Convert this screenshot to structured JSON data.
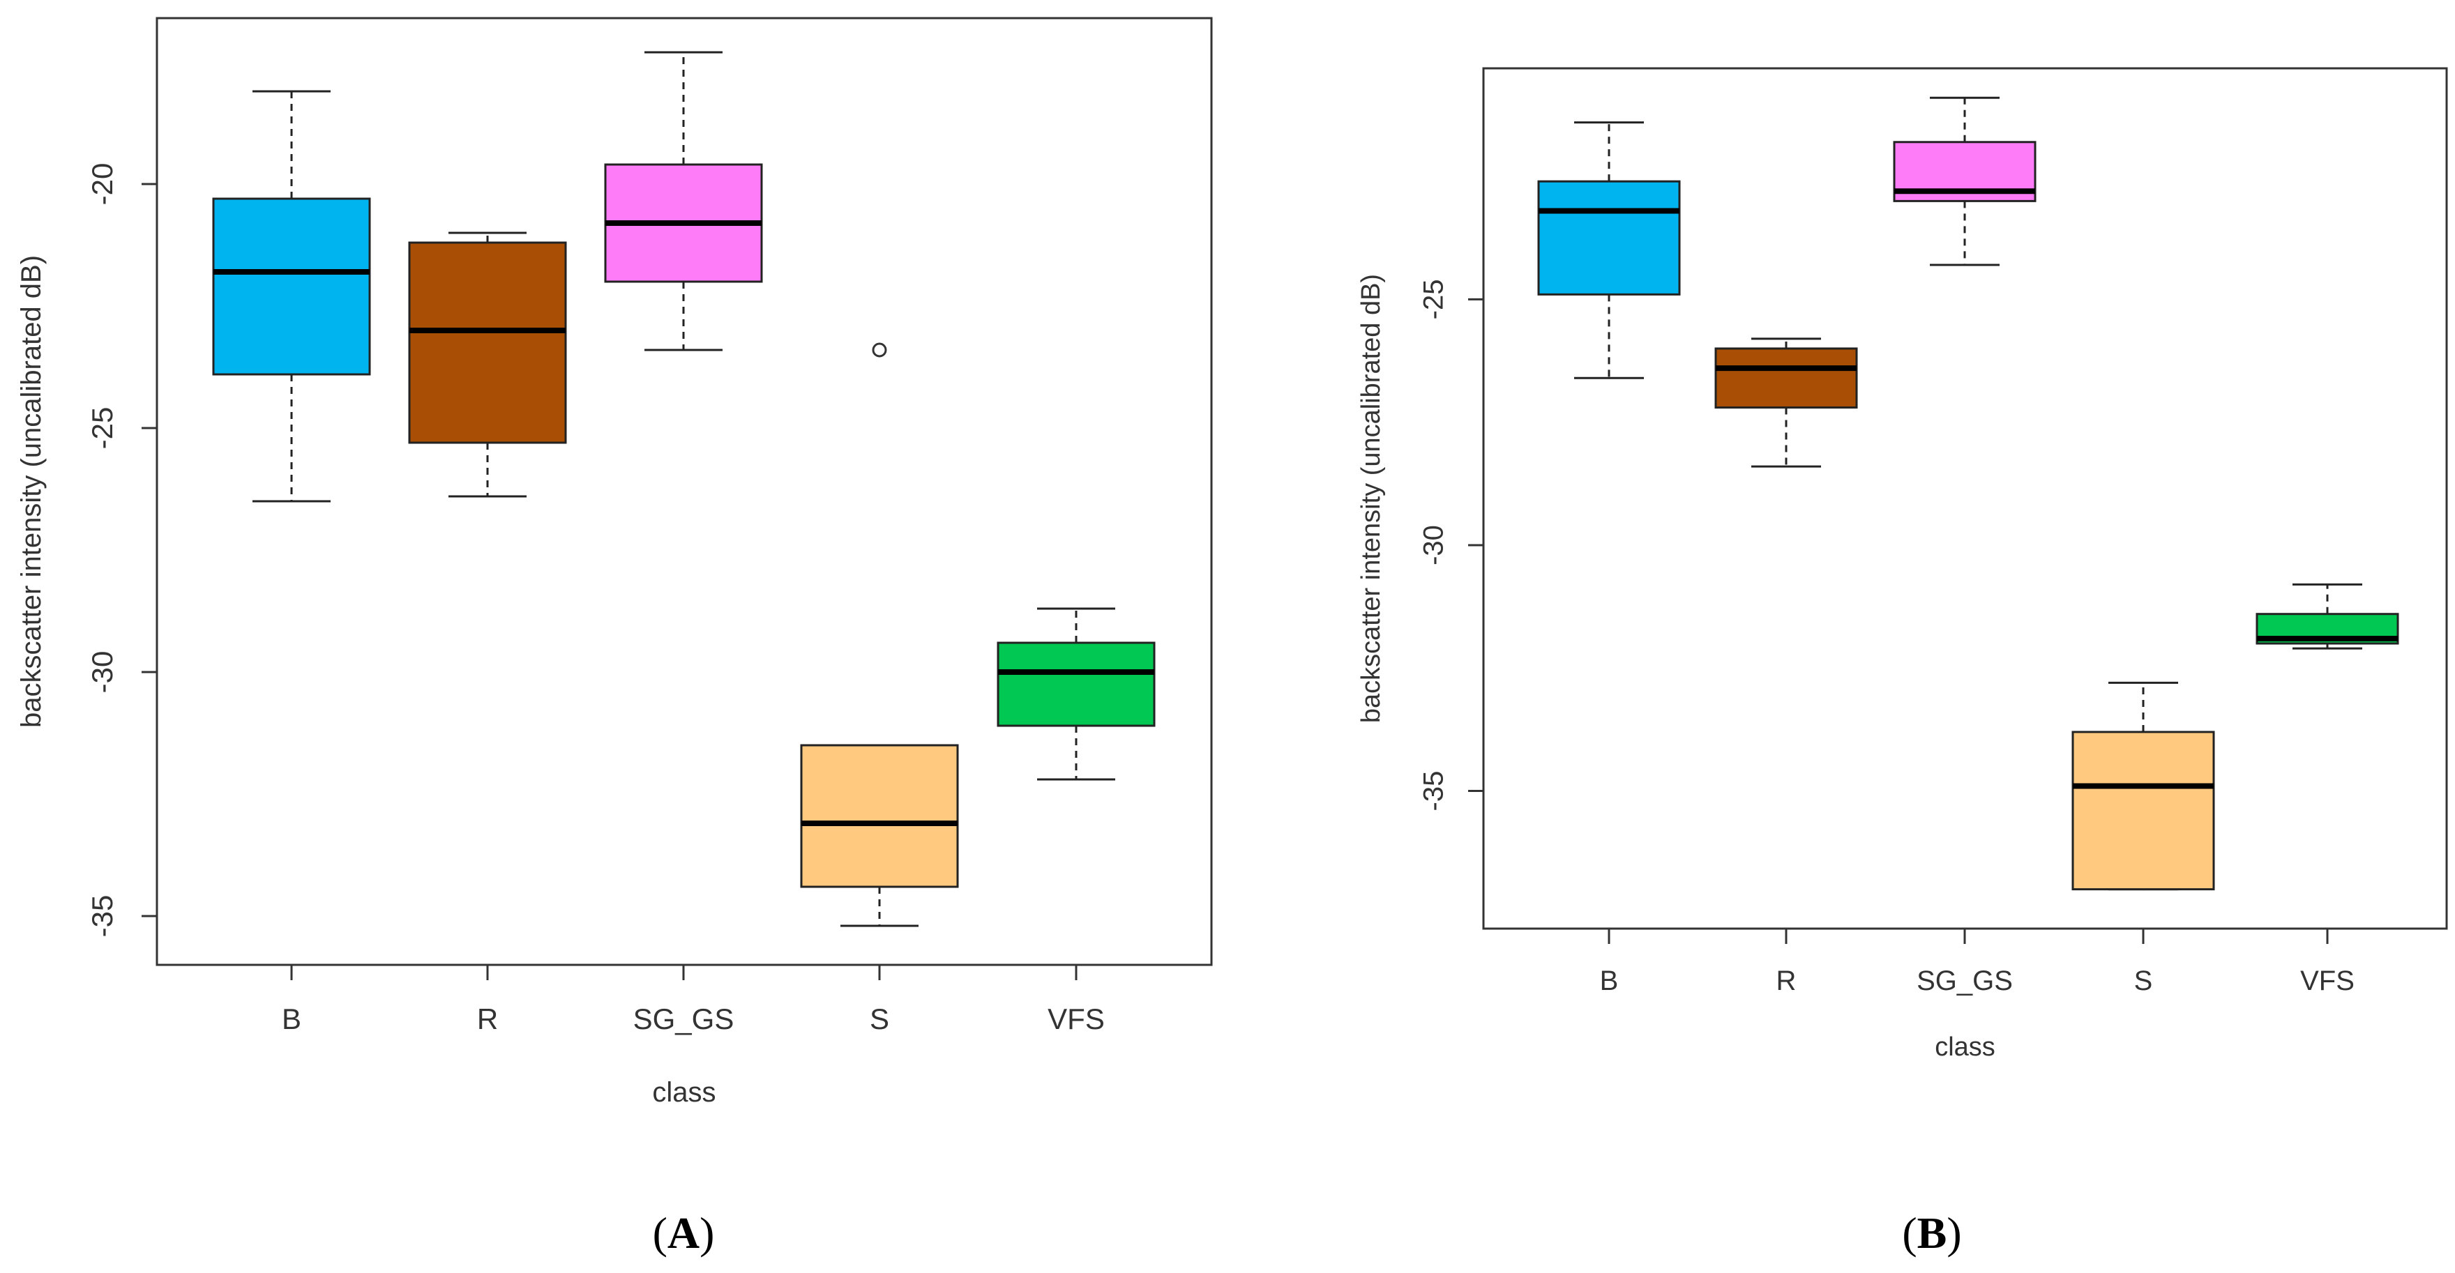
{
  "chart_data": [
    {
      "type": "boxplot",
      "panel_label": "A",
      "panel_label_open": "(",
      "panel_label_close": ")",
      "xlabel": "class",
      "ylabel": "backscatter intensity (uncalibrated dB)",
      "categories": [
        "B",
        "R",
        "SG_GS",
        "S",
        "VFS"
      ],
      "colors": [
        "#00b4f0",
        "#a84f05",
        "#ff7cf8",
        "#ffc97f",
        "#00c853"
      ],
      "yticks": [
        -20,
        -25,
        -30,
        -35
      ],
      "ylim": [
        -36,
        -16.6
      ],
      "boxes": [
        {
          "whisker_low": -26.5,
          "q1": -23.9,
          "median": -21.8,
          "q3": -20.3,
          "whisker_high": -18.1,
          "outliers": []
        },
        {
          "whisker_low": -26.4,
          "q1": -25.3,
          "median": -23.0,
          "q3": -21.2,
          "whisker_high": -21.0,
          "outliers": []
        },
        {
          "whisker_low": -23.4,
          "q1": -22.0,
          "median": -20.8,
          "q3": -19.6,
          "whisker_high": -17.3,
          "outliers": []
        },
        {
          "whisker_low": -35.2,
          "q1": -34.4,
          "median": -33.1,
          "q3": -31.5,
          "whisker_high": -31.5,
          "outliers": [
            -23.4
          ]
        },
        {
          "whisker_low": -32.2,
          "q1": -31.1,
          "median": -30.0,
          "q3": -29.4,
          "whisker_high": -28.7,
          "outliers": []
        }
      ]
    },
    {
      "type": "boxplot",
      "panel_label": "B",
      "panel_label_open": "(",
      "panel_label_close": ")",
      "xlabel": "class",
      "ylabel": "backscatter intensity (uncalibrated dB)",
      "categories": [
        "B",
        "R",
        "SG_GS",
        "S",
        "VFS"
      ],
      "colors": [
        "#00b4f0",
        "#a84f05",
        "#ff7cf8",
        "#ffc97f",
        "#00c853"
      ],
      "yticks": [
        -25,
        -30,
        -35
      ],
      "ylim": [
        -37.8,
        -20.3
      ],
      "boxes": [
        {
          "whisker_low": -26.6,
          "q1": -24.9,
          "median": -23.2,
          "q3": -22.6,
          "whisker_high": -21.4,
          "outliers": []
        },
        {
          "whisker_low": -28.4,
          "q1": -27.2,
          "median": -26.4,
          "q3": -26.0,
          "whisker_high": -25.8,
          "outliers": []
        },
        {
          "whisker_low": -24.3,
          "q1": -23.0,
          "median": -22.8,
          "q3": -21.8,
          "whisker_high": -20.9,
          "outliers": []
        },
        {
          "whisker_low": -37.0,
          "q1": -37.0,
          "median": -34.9,
          "q3": -33.8,
          "whisker_high": -32.8,
          "outliers": []
        },
        {
          "whisker_low": -32.1,
          "q1": -32.0,
          "median": -31.9,
          "q3": -31.4,
          "whisker_high": -30.8,
          "outliers": []
        }
      ]
    }
  ]
}
